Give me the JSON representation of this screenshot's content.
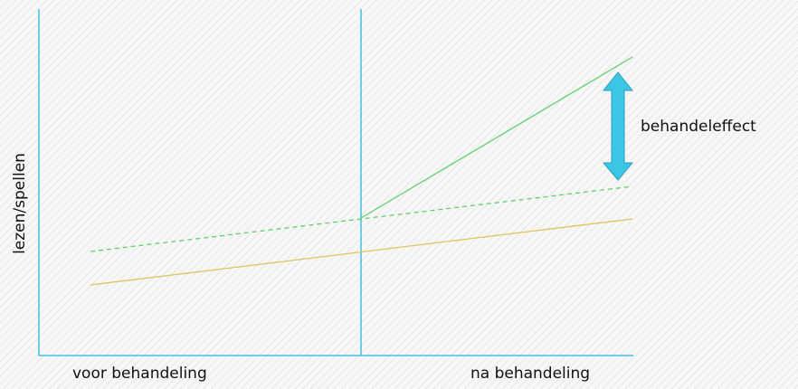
{
  "y_axis_label": "lezen/spellen",
  "x_labels": [
    "voor behandeling",
    "na behandeling"
  ],
  "annotation": "behandeleffect"
}
